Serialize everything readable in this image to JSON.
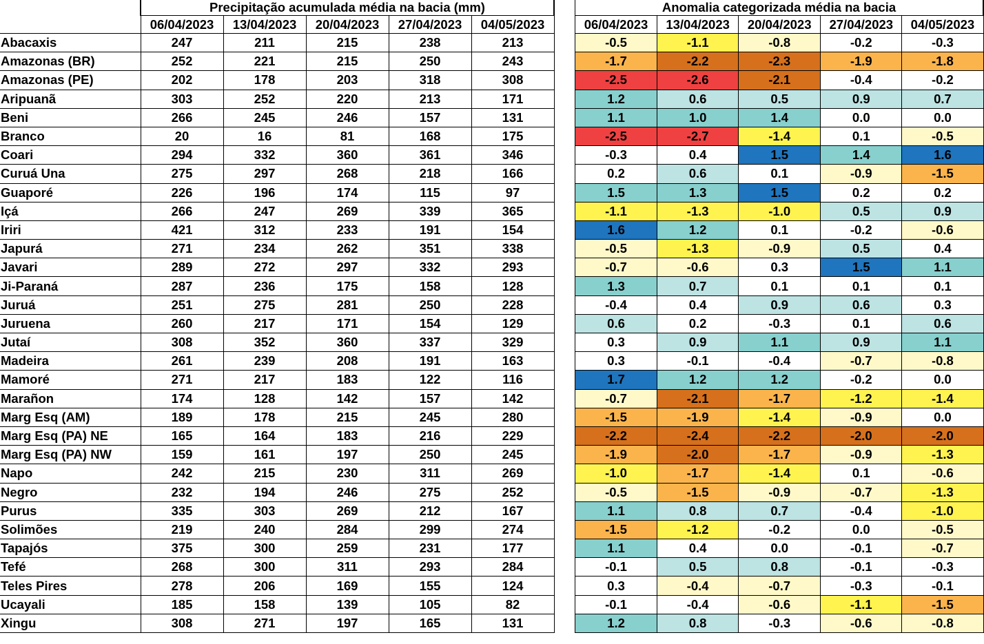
{
  "precipitation_table": {
    "title": "Precipitação acumulada média na bacia (mm)",
    "dates": [
      "06/04/2023",
      "13/04/2023",
      "20/04/2023",
      "27/04/2023",
      "04/05/2023"
    ],
    "rows": [
      {
        "basin": "Abacaxis",
        "values": [
          "247",
          "211",
          "215",
          "238",
          "213"
        ]
      },
      {
        "basin": "Amazonas (BR)",
        "values": [
          "252",
          "221",
          "215",
          "250",
          "243"
        ]
      },
      {
        "basin": "Amazonas (PE)",
        "values": [
          "202",
          "178",
          "203",
          "318",
          "308"
        ]
      },
      {
        "basin": "Aripuanã",
        "values": [
          "303",
          "252",
          "220",
          "213",
          "171"
        ]
      },
      {
        "basin": "Beni",
        "values": [
          "266",
          "245",
          "246",
          "157",
          "131"
        ]
      },
      {
        "basin": "Branco",
        "values": [
          "20",
          "16",
          "81",
          "168",
          "175"
        ]
      },
      {
        "basin": "Coari",
        "values": [
          "294",
          "332",
          "360",
          "361",
          "346"
        ]
      },
      {
        "basin": "Curuá Una",
        "values": [
          "275",
          "297",
          "268",
          "218",
          "166"
        ]
      },
      {
        "basin": "Guaporé",
        "values": [
          "226",
          "196",
          "174",
          "115",
          "97"
        ]
      },
      {
        "basin": "Içá",
        "values": [
          "266",
          "247",
          "269",
          "339",
          "365"
        ]
      },
      {
        "basin": "Iriri",
        "values": [
          "421",
          "312",
          "233",
          "191",
          "154"
        ]
      },
      {
        "basin": "Japurá",
        "values": [
          "271",
          "234",
          "262",
          "351",
          "338"
        ]
      },
      {
        "basin": "Javari",
        "values": [
          "289",
          "272",
          "297",
          "332",
          "293"
        ]
      },
      {
        "basin": "Ji-Paraná",
        "values": [
          "287",
          "236",
          "175",
          "158",
          "128"
        ]
      },
      {
        "basin": "Juruá",
        "values": [
          "251",
          "275",
          "281",
          "250",
          "228"
        ]
      },
      {
        "basin": "Juruena",
        "values": [
          "260",
          "217",
          "171",
          "154",
          "129"
        ]
      },
      {
        "basin": "Jutaí",
        "values": [
          "308",
          "352",
          "360",
          "337",
          "329"
        ]
      },
      {
        "basin": "Madeira",
        "values": [
          "261",
          "239",
          "208",
          "191",
          "163"
        ]
      },
      {
        "basin": "Mamoré",
        "values": [
          "271",
          "217",
          "183",
          "122",
          "116"
        ]
      },
      {
        "basin": "Marañon",
        "values": [
          "174",
          "128",
          "142",
          "157",
          "142"
        ]
      },
      {
        "basin": "Marg Esq (AM)",
        "values": [
          "189",
          "178",
          "215",
          "245",
          "280"
        ]
      },
      {
        "basin": "Marg Esq (PA) NE",
        "values": [
          "165",
          "164",
          "183",
          "216",
          "229"
        ]
      },
      {
        "basin": "Marg Esq (PA) NW",
        "values": [
          "159",
          "161",
          "197",
          "250",
          "245"
        ]
      },
      {
        "basin": "Napo",
        "values": [
          "242",
          "215",
          "230",
          "311",
          "269"
        ]
      },
      {
        "basin": "Negro",
        "values": [
          "232",
          "194",
          "246",
          "275",
          "252"
        ]
      },
      {
        "basin": "Purus",
        "values": [
          "335",
          "303",
          "269",
          "212",
          "167"
        ]
      },
      {
        "basin": "Solimões",
        "values": [
          "219",
          "240",
          "284",
          "299",
          "274"
        ]
      },
      {
        "basin": "Tapajós",
        "values": [
          "375",
          "300",
          "259",
          "231",
          "177"
        ]
      },
      {
        "basin": "Tefé",
        "values": [
          "268",
          "300",
          "311",
          "293",
          "284"
        ]
      },
      {
        "basin": "Teles Pires",
        "values": [
          "278",
          "206",
          "169",
          "155",
          "124"
        ]
      },
      {
        "basin": "Ucayali",
        "values": [
          "185",
          "158",
          "139",
          "105",
          "82"
        ]
      },
      {
        "basin": "Xingu",
        "values": [
          "308",
          "271",
          "197",
          "165",
          "131"
        ]
      }
    ]
  },
  "anomaly_table": {
    "title": "Anomalia categorizada média na bacia",
    "dates": [
      "06/04/2023",
      "13/04/2023",
      "20/04/2023",
      "27/04/2023",
      "04/05/2023"
    ],
    "category_colors": {
      "W": "#ffffff",
      "LY": "#fff9c9",
      "Y": "#fff34f",
      "O": "#fbb44c",
      "DO": "#d6701c",
      "R": "#ef4141",
      "LB": "#bde3e3",
      "T": "#87d0ce",
      "B": "#1f75be"
    },
    "rows": [
      {
        "values": [
          "-0.5",
          "-1.1",
          "-0.8",
          "-0.2",
          "-0.3"
        ],
        "colors": [
          "LY",
          "Y",
          "LY",
          "W",
          "W"
        ]
      },
      {
        "values": [
          "-1.7",
          "-2.2",
          "-2.3",
          "-1.9",
          "-1.8"
        ],
        "colors": [
          "O",
          "DO",
          "DO",
          "O",
          "O"
        ]
      },
      {
        "values": [
          "-2.5",
          "-2.6",
          "-2.1",
          "-0.4",
          "-0.2"
        ],
        "colors": [
          "R",
          "R",
          "DO",
          "W",
          "W"
        ]
      },
      {
        "values": [
          "1.2",
          "0.6",
          "0.5",
          "0.9",
          "0.7"
        ],
        "colors": [
          "T",
          "LB",
          "LB",
          "LB",
          "LB"
        ]
      },
      {
        "values": [
          "1.1",
          "1.0",
          "1.4",
          "0.0",
          "0.0"
        ],
        "colors": [
          "T",
          "T",
          "T",
          "W",
          "W"
        ]
      },
      {
        "values": [
          "-2.5",
          "-2.7",
          "-1.4",
          "0.1",
          "-0.5"
        ],
        "colors": [
          "R",
          "R",
          "Y",
          "W",
          "LY"
        ]
      },
      {
        "values": [
          "-0.3",
          "0.4",
          "1.5",
          "1.4",
          "1.6"
        ],
        "colors": [
          "W",
          "W",
          "B",
          "T",
          "B"
        ]
      },
      {
        "values": [
          "0.2",
          "0.6",
          "0.1",
          "-0.9",
          "-1.5"
        ],
        "colors": [
          "W",
          "LB",
          "W",
          "LY",
          "O"
        ]
      },
      {
        "values": [
          "1.5",
          "1.3",
          "1.5",
          "0.2",
          "0.2"
        ],
        "colors": [
          "T",
          "T",
          "B",
          "W",
          "W"
        ]
      },
      {
        "values": [
          "-1.1",
          "-1.3",
          "-1.0",
          "0.5",
          "0.9"
        ],
        "colors": [
          "Y",
          "Y",
          "Y",
          "LB",
          "LB"
        ]
      },
      {
        "values": [
          "1.6",
          "1.2",
          "0.1",
          "-0.2",
          "-0.6"
        ],
        "colors": [
          "B",
          "T",
          "W",
          "W",
          "LY"
        ]
      },
      {
        "values": [
          "-0.5",
          "-1.3",
          "-0.9",
          "0.5",
          "0.4"
        ],
        "colors": [
          "LY",
          "Y",
          "LY",
          "LB",
          "W"
        ]
      },
      {
        "values": [
          "-0.7",
          "-0.6",
          "0.3",
          "1.5",
          "1.1"
        ],
        "colors": [
          "LY",
          "LY",
          "W",
          "B",
          "T"
        ]
      },
      {
        "values": [
          "1.3",
          "0.7",
          "0.1",
          "0.1",
          "0.1"
        ],
        "colors": [
          "T",
          "LB",
          "W",
          "W",
          "W"
        ]
      },
      {
        "values": [
          "-0.4",
          "0.4",
          "0.9",
          "0.6",
          "0.3"
        ],
        "colors": [
          "W",
          "W",
          "LB",
          "LB",
          "W"
        ]
      },
      {
        "values": [
          "0.6",
          "0.2",
          "-0.3",
          "0.1",
          "0.6"
        ],
        "colors": [
          "LB",
          "W",
          "W",
          "W",
          "LB"
        ]
      },
      {
        "values": [
          "0.3",
          "0.9",
          "1.1",
          "0.9",
          "1.1"
        ],
        "colors": [
          "W",
          "LB",
          "T",
          "LB",
          "T"
        ]
      },
      {
        "values": [
          "0.3",
          "-0.1",
          "-0.4",
          "-0.7",
          "-0.8"
        ],
        "colors": [
          "W",
          "W",
          "W",
          "LY",
          "LY"
        ]
      },
      {
        "values": [
          "1.7",
          "1.2",
          "1.2",
          "-0.2",
          "0.0"
        ],
        "colors": [
          "B",
          "T",
          "T",
          "W",
          "W"
        ]
      },
      {
        "values": [
          "-0.7",
          "-2.1",
          "-1.7",
          "-1.2",
          "-1.4"
        ],
        "colors": [
          "LY",
          "DO",
          "O",
          "Y",
          "Y"
        ]
      },
      {
        "values": [
          "-1.5",
          "-1.9",
          "-1.4",
          "-0.9",
          "0.0"
        ],
        "colors": [
          "O",
          "O",
          "Y",
          "LY",
          "W"
        ]
      },
      {
        "values": [
          "-2.2",
          "-2.4",
          "-2.2",
          "-2.0",
          "-2.0"
        ],
        "colors": [
          "DO",
          "DO",
          "DO",
          "DO",
          "DO"
        ]
      },
      {
        "values": [
          "-1.9",
          "-2.0",
          "-1.7",
          "-0.9",
          "-1.3"
        ],
        "colors": [
          "O",
          "DO",
          "O",
          "LY",
          "Y"
        ]
      },
      {
        "values": [
          "-1.0",
          "-1.7",
          "-1.4",
          "0.1",
          "-0.6"
        ],
        "colors": [
          "Y",
          "O",
          "Y",
          "W",
          "LY"
        ]
      },
      {
        "values": [
          "-0.5",
          "-1.5",
          "-0.9",
          "-0.7",
          "-1.3"
        ],
        "colors": [
          "LY",
          "O",
          "LY",
          "LY",
          "Y"
        ]
      },
      {
        "values": [
          "1.1",
          "0.8",
          "0.7",
          "-0.4",
          "-1.0"
        ],
        "colors": [
          "T",
          "LB",
          "LB",
          "W",
          "Y"
        ]
      },
      {
        "values": [
          "-1.5",
          "-1.2",
          "-0.2",
          "0.0",
          "-0.5"
        ],
        "colors": [
          "O",
          "Y",
          "W",
          "W",
          "LY"
        ]
      },
      {
        "values": [
          "1.1",
          "0.4",
          "0.0",
          "-0.1",
          "-0.7"
        ],
        "colors": [
          "T",
          "W",
          "W",
          "W",
          "LY"
        ]
      },
      {
        "values": [
          "-0.1",
          "0.5",
          "0.8",
          "-0.1",
          "-0.3"
        ],
        "colors": [
          "W",
          "LB",
          "LB",
          "W",
          "W"
        ]
      },
      {
        "values": [
          "0.3",
          "-0.4",
          "-0.7",
          "-0.3",
          "-0.1"
        ],
        "colors": [
          "W",
          "LY",
          "LY",
          "W",
          "W"
        ]
      },
      {
        "values": [
          "-0.1",
          "-0.4",
          "-0.6",
          "-1.1",
          "-1.5"
        ],
        "colors": [
          "W",
          "W",
          "LY",
          "Y",
          "O"
        ]
      },
      {
        "values": [
          "1.2",
          "0.8",
          "-0.3",
          "-0.6",
          "-0.8"
        ],
        "colors": [
          "T",
          "LB",
          "W",
          "LY",
          "LY"
        ]
      }
    ]
  }
}
